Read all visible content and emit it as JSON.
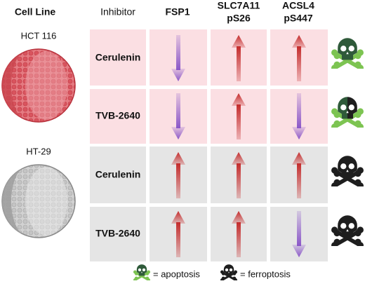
{
  "header": {
    "cell_line": "Cell Line",
    "inhibitor": "Inhibitor",
    "fsp1": "FSP1",
    "slc7a11": [
      "SLC7A11",
      "pS26"
    ],
    "acsl4": [
      "ACSL4",
      "pS447"
    ]
  },
  "cell_lines": [
    "HCT 116",
    "HT-29"
  ],
  "rows": [
    {
      "inhibitor": "Cerulenin"
    },
    {
      "inhibitor": "TVB-2640"
    },
    {
      "inhibitor": "Cerulenin"
    },
    {
      "inhibitor": "TVB-2640"
    }
  ],
  "legend": {
    "apoptosis": "= apoptosis",
    "ferroptosis": "= ferroptosis"
  }
}
